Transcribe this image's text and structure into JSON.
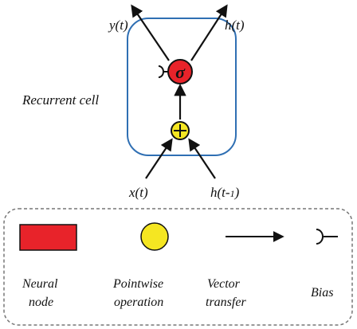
{
  "cell": {
    "label": "Recurrent cell",
    "activation_symbol": "σ",
    "sum_symbol": "+"
  },
  "outputs": {
    "y": {
      "base": "y",
      "paren_open": "(",
      "var": "t",
      "paren_close": ")"
    },
    "h": {
      "base": "h",
      "paren_open": "(",
      "var": "t",
      "paren_close": ")"
    }
  },
  "inputs": {
    "x": {
      "base": "x",
      "paren_open": "(",
      "var": "t",
      "paren_close": ")"
    },
    "h_prev": {
      "base": "h",
      "paren_open": "(",
      "var": "t-",
      "sub": "1",
      "paren_close": ")"
    }
  },
  "legend": {
    "items": [
      {
        "line1": "Neural",
        "line2": "node",
        "icon": "red-rectangle-icon"
      },
      {
        "line1": "Pointwise",
        "line2": "operation",
        "icon": "yellow-circle-icon"
      },
      {
        "line1": "Vector",
        "line2": "transfer",
        "icon": "arrow-icon"
      },
      {
        "line1": "Bias",
        "line2": "",
        "icon": "bias-bracket-icon"
      }
    ]
  },
  "colors": {
    "cell_border": "#2f6fb3",
    "neural_node": "#e8232a",
    "pointwise": "#f5e622",
    "legend_border": "#777777"
  }
}
